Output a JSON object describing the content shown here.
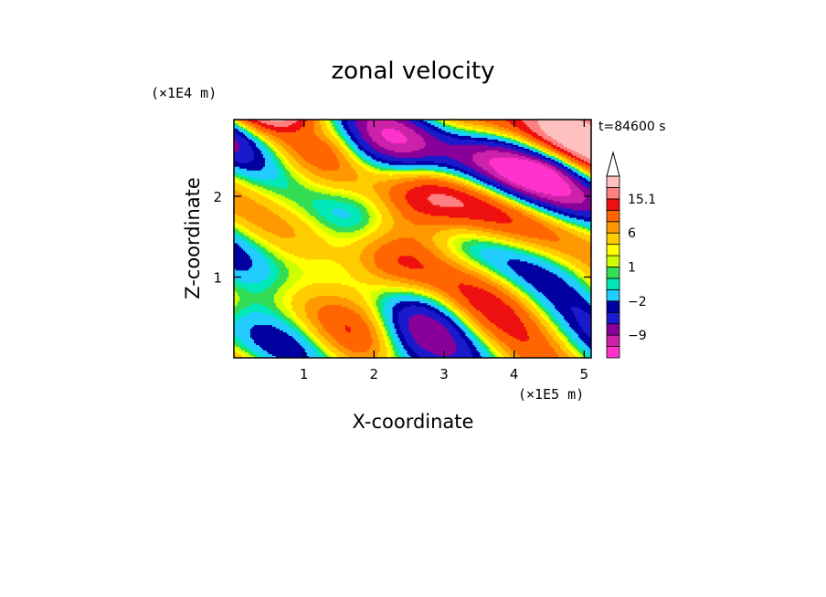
{
  "chart_data": {
    "type": "heatmap",
    "title": "zonal velocity",
    "xlabel": "X-coordinate",
    "ylabel": "Z-coordinate",
    "x_unit": "(×1E5 m)",
    "y_unit": "(×1E4 m)",
    "time_label": "t=84600 s",
    "xlim": [
      0,
      5.1
    ],
    "ylim": [
      0,
      2.95
    ],
    "x_ticks": [
      1,
      2,
      3,
      4,
      5
    ],
    "x_tick_labels": [
      "1",
      "2",
      "3",
      "4",
      "5"
    ],
    "y_ticks": [
      1,
      2
    ],
    "y_tick_labels": [
      "1",
      "2"
    ],
    "colorbar": {
      "levels": [
        -15,
        -12,
        -9,
        -6,
        -4,
        -2,
        -1,
        0,
        1,
        2,
        4,
        6,
        9,
        12,
        15.1
      ],
      "colors": [
        "#ff33cc",
        "#cc22aa",
        "#880099",
        "#1a1acc",
        "#0000a0",
        "#22ccff",
        "#00e8b8",
        "#33dd55",
        "#ccff00",
        "#ffff00",
        "#ffcc00",
        "#ff9900",
        "#ff6600",
        "#ee1111",
        "#ff8080",
        "#ffc0c0"
      ],
      "labels": [
        {
          "value": 15.1,
          "text": "15.1"
        },
        {
          "value": 6,
          "text": "6"
        },
        {
          "value": 1,
          "text": "1"
        },
        {
          "value": -2,
          "text": "−2"
        },
        {
          "value": -9,
          "text": "−9"
        }
      ]
    },
    "field_range": [
      -15,
      15.1
    ],
    "grid": false,
    "legend": "right colorbar"
  }
}
